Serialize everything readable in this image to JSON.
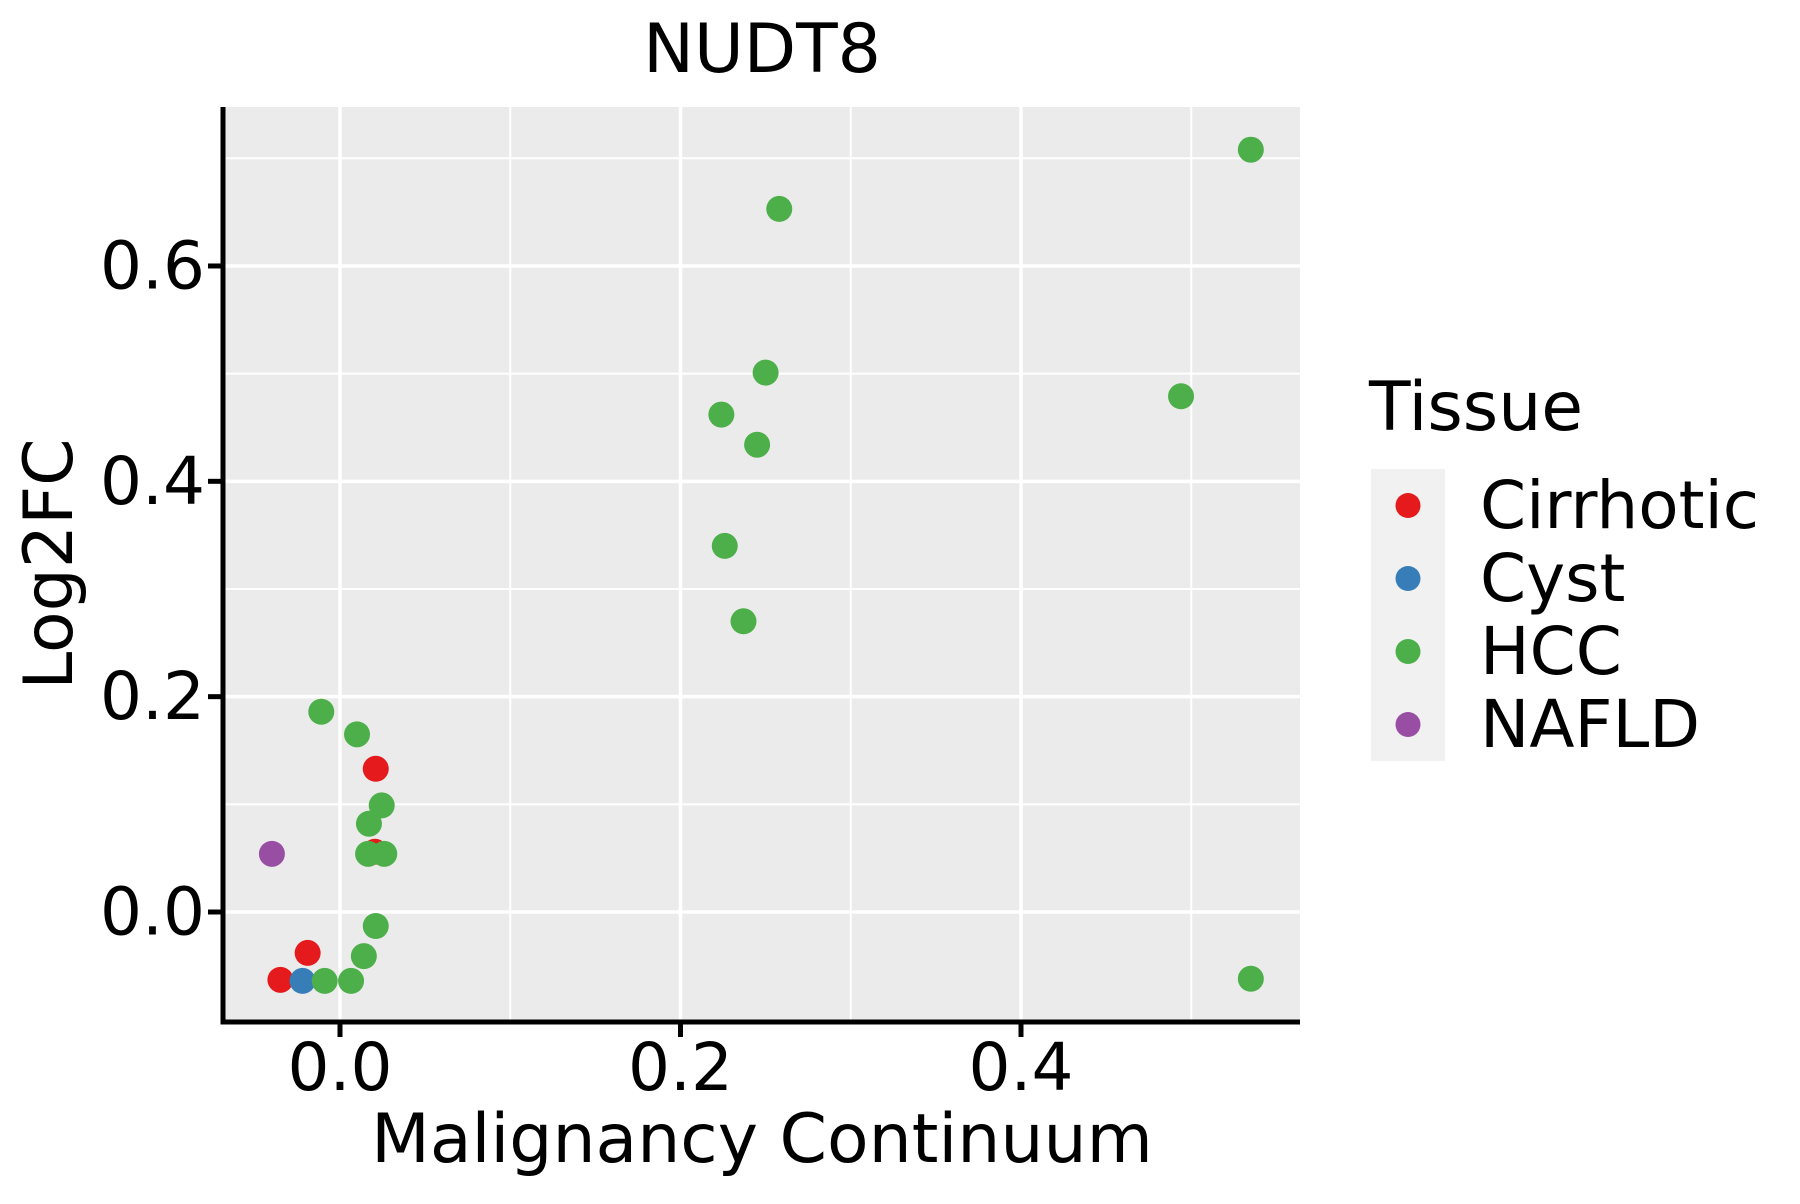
{
  "title": "NUDT8",
  "axes": {
    "x": {
      "label": "Malignancy Continuum",
      "ticks": [
        0.0,
        0.2,
        0.4
      ],
      "tick_labels": [
        "0.0",
        "0.2",
        "0.4"
      ],
      "minor_ticks": [
        0.1,
        0.3,
        0.5
      ],
      "range": [
        -0.069,
        0.564
      ]
    },
    "y": {
      "label": "Log2FC",
      "ticks": [
        0.0,
        0.2,
        0.4,
        0.6
      ],
      "tick_labels": [
        "0.0",
        "0.2",
        "0.4",
        "0.6"
      ],
      "minor_ticks": [
        0.1,
        0.3,
        0.5,
        0.7
      ],
      "range": [
        -0.102,
        0.748
      ]
    }
  },
  "legend": {
    "title": "Tissue",
    "entries": [
      {
        "label": "Cirrhotic",
        "color": "#E41A1C"
      },
      {
        "label": "Cyst",
        "color": "#377EB8"
      },
      {
        "label": "HCC",
        "color": "#4DAF4A"
      },
      {
        "label": "NAFLD",
        "color": "#984EA3"
      }
    ]
  },
  "style_colors": {
    "panel_background": "#EBEBEB",
    "grid_line": "#FFFFFF",
    "legend_key_background": "#F1F1F1",
    "axis_line": "#000000",
    "cirrhotic": "#E41A1C",
    "cyst": "#377EB8",
    "hcc": "#4DAF4A",
    "nafld": "#984EA3"
  },
  "chart_data": {
    "type": "scatter",
    "title": "NUDT8",
    "xlabel": "Malignancy Continuum",
    "ylabel": "Log2FC",
    "xlim": [
      -0.069,
      0.564
    ],
    "ylim": [
      -0.102,
      0.748
    ],
    "x_ticks": [
      0.0,
      0.2,
      0.4
    ],
    "y_ticks": [
      0.0,
      0.2,
      0.4,
      0.6
    ],
    "grid": true,
    "legend_position": "right",
    "legend_title": "Tissue",
    "series": [
      {
        "name": "Cirrhotic",
        "color": "#E41A1C",
        "points": [
          [
            0.021,
            0.133
          ],
          [
            0.0205,
            0.056
          ],
          [
            -0.019,
            -0.038
          ],
          [
            -0.035,
            -0.063
          ]
        ]
      },
      {
        "name": "Cyst",
        "color": "#377EB8",
        "points": [
          [
            -0.022,
            -0.064
          ]
        ]
      },
      {
        "name": "HCC",
        "color": "#4DAF4A",
        "points": [
          [
            0.535,
            0.708
          ],
          [
            0.258,
            0.653
          ],
          [
            0.25,
            0.501
          ],
          [
            0.224,
            0.462
          ],
          [
            0.245,
            0.434
          ],
          [
            0.226,
            0.34
          ],
          [
            0.237,
            0.27
          ],
          [
            0.494,
            0.479
          ],
          [
            -0.011,
            0.186
          ],
          [
            0.01,
            0.165
          ],
          [
            0.0245,
            0.099
          ],
          [
            0.017,
            0.082
          ],
          [
            0.0165,
            0.054
          ],
          [
            0.026,
            0.054
          ],
          [
            0.021,
            -0.013
          ],
          [
            0.014,
            -0.041
          ],
          [
            -0.009,
            -0.064
          ],
          [
            0.0065,
            -0.064
          ],
          [
            0.535,
            -0.062
          ]
        ]
      },
      {
        "name": "NAFLD",
        "color": "#984EA3",
        "points": [
          [
            -0.04,
            0.054
          ]
        ]
      }
    ]
  }
}
